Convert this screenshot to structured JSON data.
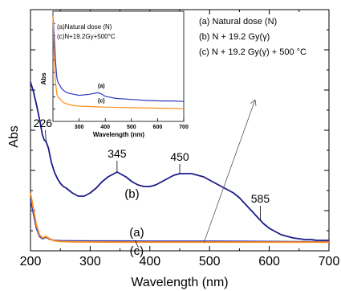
{
  "chart_data": {
    "type": "line",
    "title": "",
    "xlabel": "Wavelength (nm)",
    "ylabel": "Abs",
    "xlim": [
      200,
      700
    ],
    "x_ticks": [
      "200",
      "300",
      "400",
      "500",
      "600",
      "700"
    ],
    "y_ticks": "unlabeled",
    "legend": {
      "placement": "top-right",
      "entries": [
        "(a) Natural dose (N)",
        "(b) N + 19.2 Gy(γ)",
        "(c) N + 19.2 Gy(γ) + 500 °C"
      ]
    },
    "series": [
      {
        "name": "(b)",
        "label": "(b)",
        "color": "#1c1c8a",
        "x": [
          200,
          205,
          210,
          215,
          220,
          223,
          226,
          230,
          235,
          240,
          245,
          250,
          255,
          260,
          270,
          280,
          290,
          300,
          310,
          320,
          330,
          340,
          345,
          350,
          360,
          370,
          380,
          390,
          400,
          410,
          420,
          430,
          440,
          450,
          460,
          470,
          480,
          490,
          500,
          510,
          520,
          530,
          540,
          550,
          560,
          570,
          580,
          590,
          600,
          610,
          620,
          630,
          640,
          650,
          660,
          670,
          680,
          690,
          700
        ],
        "y": [
          1.0,
          0.94,
          0.86,
          0.77,
          0.67,
          0.64,
          0.63,
          0.59,
          0.5,
          0.44,
          0.4,
          0.37,
          0.35,
          0.34,
          0.31,
          0.29,
          0.29,
          0.31,
          0.34,
          0.38,
          0.41,
          0.43,
          0.44,
          0.43,
          0.41,
          0.38,
          0.36,
          0.35,
          0.35,
          0.36,
          0.38,
          0.4,
          0.42,
          0.43,
          0.43,
          0.43,
          0.42,
          0.41,
          0.39,
          0.37,
          0.35,
          0.33,
          0.31,
          0.28,
          0.24,
          0.2,
          0.16,
          0.12,
          0.09,
          0.07,
          0.05,
          0.04,
          0.03,
          0.025,
          0.02,
          0.02,
          0.015,
          0.015,
          0.015
        ]
      },
      {
        "name": "(a)",
        "label": "(a)",
        "color": "#2e3ac0",
        "x": [
          200,
          205,
          210,
          215,
          220,
          226,
          232,
          240,
          250,
          270,
          300,
          350,
          400,
          450,
          500,
          550,
          600,
          650,
          700
        ],
        "y": [
          0.27,
          0.18,
          0.09,
          0.04,
          0.025,
          0.035,
          0.022,
          0.015,
          0.013,
          0.012,
          0.011,
          0.011,
          0.01,
          0.01,
          0.01,
          0.009,
          0.008,
          0.007,
          0.006
        ]
      },
      {
        "name": "(c)",
        "label": "(c)",
        "color": "#ff8c1a",
        "x": [
          200,
          205,
          210,
          215,
          220,
          226,
          232,
          240,
          250,
          270,
          300,
          350,
          400,
          450,
          500,
          550,
          600,
          650,
          700
        ],
        "y": [
          0.31,
          0.21,
          0.11,
          0.05,
          0.03,
          0.04,
          0.025,
          0.012,
          0.008,
          0.006,
          0.005,
          0.004,
          0.004,
          0.004,
          0.004,
          0.004,
          0.004,
          0.004,
          0.004
        ]
      }
    ],
    "peak_labels": [
      {
        "text": "226",
        "x": 226,
        "y": 0.63
      },
      {
        "text": "345",
        "x": 345,
        "y": 0.44
      },
      {
        "text": "450",
        "x": 450,
        "y": 0.43
      },
      {
        "text": "585",
        "x": 585,
        "y": 0.14
      }
    ],
    "inset": {
      "type": "line",
      "xlabel": "Wavelength (nm)",
      "ylabel": "Abs",
      "xlim": [
        200,
        700
      ],
      "x_ticks": [
        "300",
        "400",
        "500",
        "600",
        "700"
      ],
      "legend": [
        "(a)Natural dose (N)",
        "(c)N+19.2Gy+500°C"
      ],
      "series": [
        {
          "name": "(a)",
          "label": "(a)",
          "color": "#2e3ac0",
          "x": [
            200,
            205,
            210,
            215,
            220,
            226,
            232,
            240,
            250,
            260,
            280,
            300,
            340,
            370,
            380,
            400,
            440,
            500,
            560,
            620,
            660,
            700
          ],
          "y": [
            1.0,
            0.8,
            0.55,
            0.4,
            0.35,
            0.33,
            0.3,
            0.28,
            0.26,
            0.25,
            0.24,
            0.23,
            0.24,
            0.255,
            0.25,
            0.22,
            0.2,
            0.19,
            0.18,
            0.175,
            0.175,
            0.17
          ]
        },
        {
          "name": "(c)",
          "label": "(c)",
          "color": "#ff8c1a",
          "x": [
            200,
            205,
            210,
            215,
            220,
            226,
            232,
            240,
            250,
            260,
            280,
            300,
            350,
            400,
            500,
            600,
            700
          ],
          "y": [
            1.0,
            0.6,
            0.35,
            0.24,
            0.21,
            0.2,
            0.18,
            0.16,
            0.15,
            0.14,
            0.13,
            0.125,
            0.12,
            0.115,
            0.11,
            0.105,
            0.1
          ]
        }
      ]
    }
  }
}
